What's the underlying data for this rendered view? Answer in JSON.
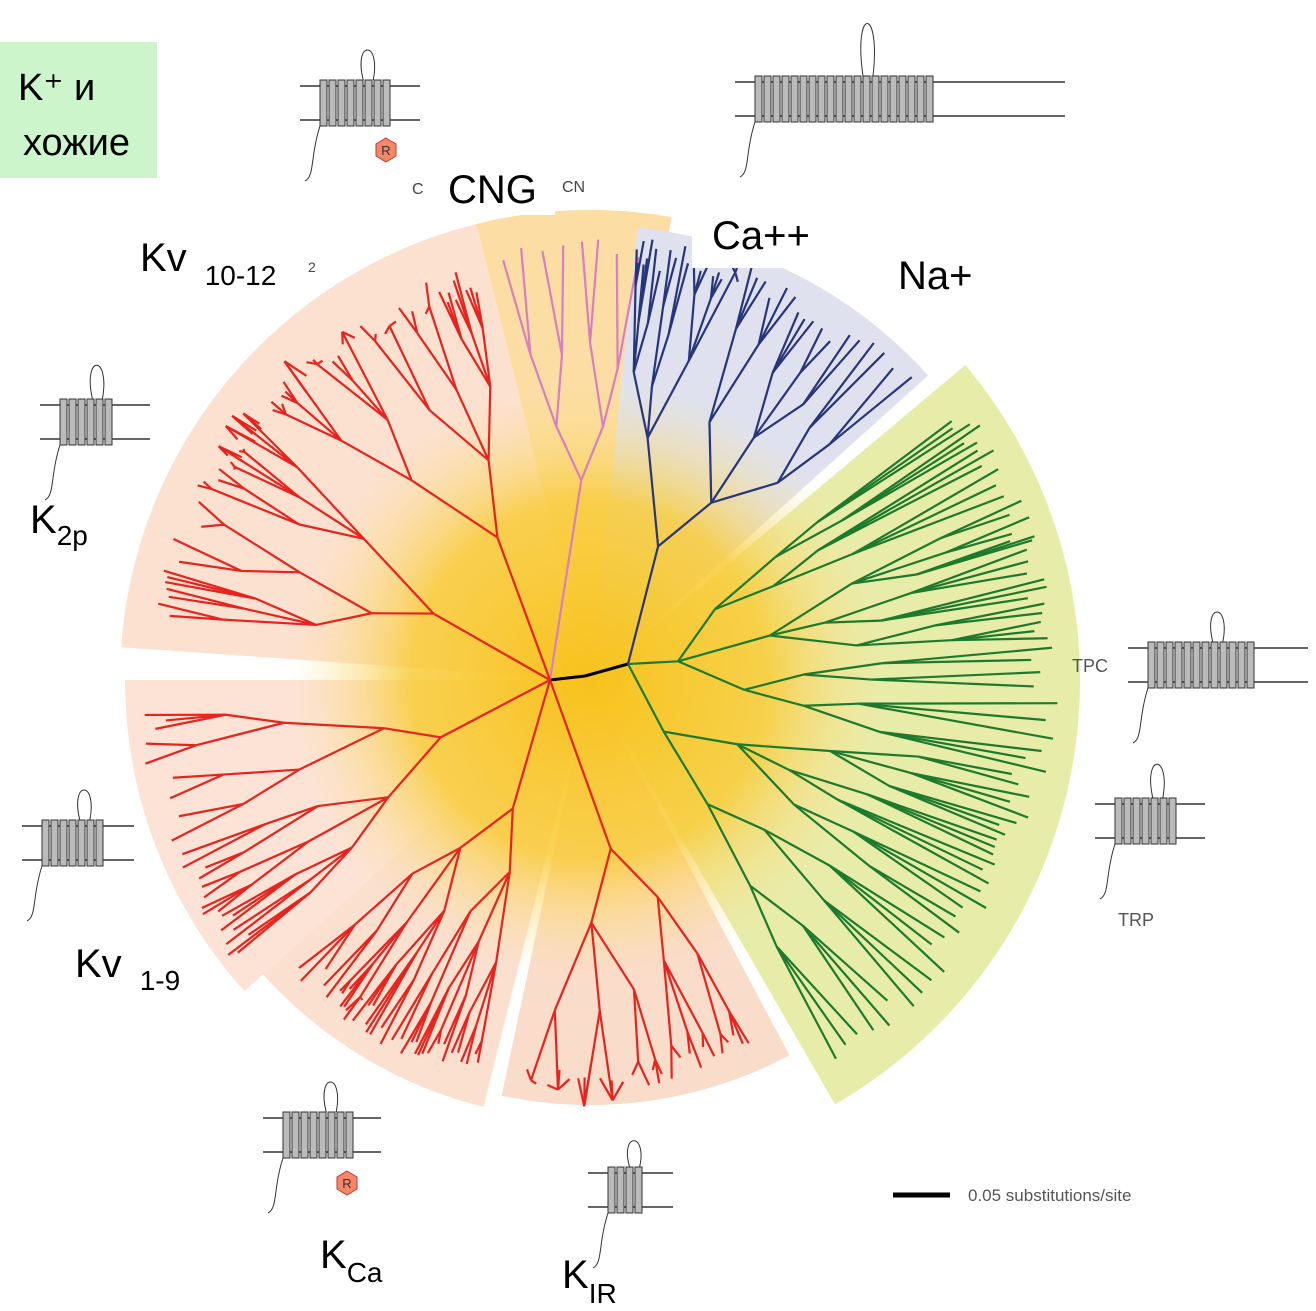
{
  "side_box": {
    "line1": "K⁺ и",
    "line2": "хожие"
  },
  "labels": {
    "cng": "CNG",
    "cn_fragment_left": "C",
    "cn_fragment_right": "CN",
    "kv_10_12": {
      "main": "Kv",
      "sub": "10-12"
    },
    "fragment_2": "2",
    "ca": "Ca++",
    "na": "Na+",
    "k2p": {
      "main": "K",
      "sub": "2p"
    },
    "tpc": "TPC",
    "trp": "TRP",
    "kv_1_9": {
      "main": "Kv",
      "sub": "1-9"
    },
    "kca": {
      "main": "K",
      "sub": "Ca"
    },
    "kir": {
      "main": "K",
      "sub": "IR"
    }
  },
  "badges": [
    "R",
    "R"
  ],
  "scale_bar": "0.05 substitutions/site"
}
